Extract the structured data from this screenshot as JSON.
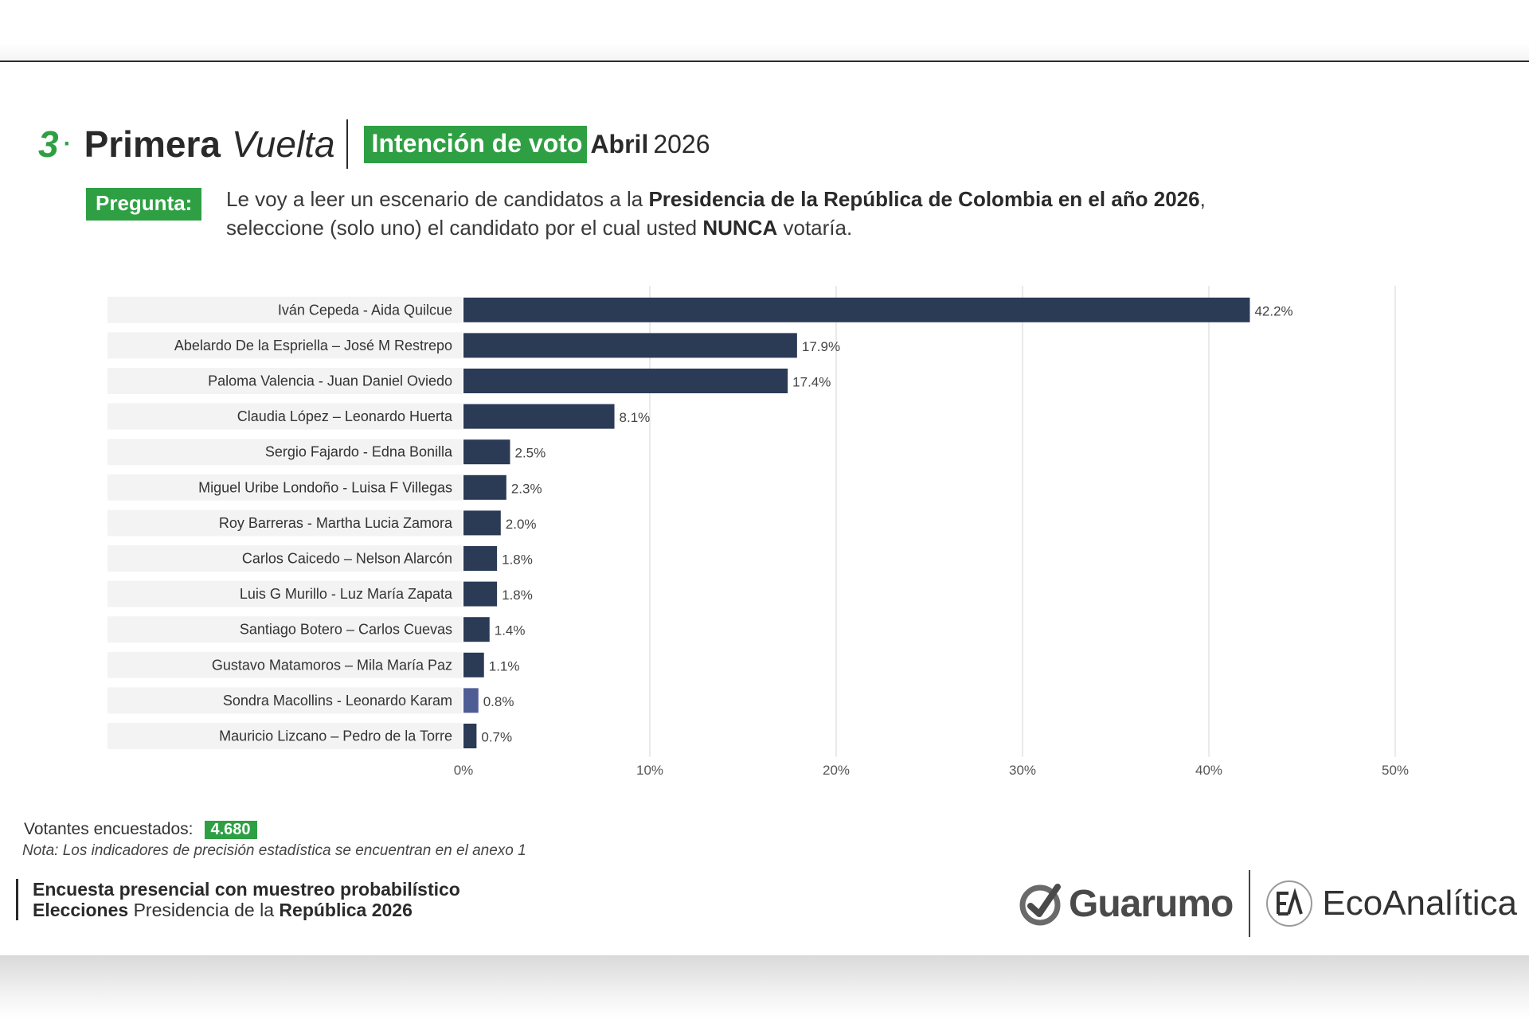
{
  "header": {
    "number": "3",
    "title_bold": "Primera",
    "title_italic": "Vuelta",
    "badge": "Intención de voto",
    "month": "Abril",
    "year": "2026"
  },
  "question": {
    "label": "Pregunta:",
    "text_1": "Le voy a leer un escenario de candidatos a la ",
    "text_bold_1": "Presidencia de la República de Colombia en el año 2026",
    "text_2": ",",
    "text_3": "seleccione (solo uno) el candidato por el cual usted ",
    "text_bold_2": "NUNCA",
    "text_4": " votaría."
  },
  "chart_data": {
    "type": "bar",
    "orientation": "horizontal",
    "categories": [
      "Iván Cepeda - Aida Quilcue",
      "Abelardo De la Espriella – José M Restrepo",
      "Paloma Valencia - Juan Daniel Oviedo",
      "Claudia López – Leonardo Huerta",
      "Sergio Fajardo - Edna Bonilla",
      "Miguel Uribe Londoño - Luisa F Villegas",
      "Roy Barreras - Martha Lucia Zamora",
      "Carlos Caicedo – Nelson Alarcón",
      "Luis G Murillo - Luz María Zapata",
      "Santiago Botero – Carlos Cuevas",
      "Gustavo Matamoros – Mila María Paz",
      "Sondra Macollins - Leonardo Karam",
      "Mauricio Lizcano – Pedro de la Torre"
    ],
    "values": [
      42.2,
      17.9,
      17.4,
      8.1,
      2.5,
      2.3,
      2.0,
      1.8,
      1.8,
      1.4,
      1.1,
      0.8,
      0.7
    ],
    "value_labels": [
      "42.2%",
      "17.9%",
      "17.4%",
      "8.1%",
      "2.5%",
      "2.3%",
      "2.0%",
      "1.8%",
      "1.8%",
      "1.4%",
      "1.1%",
      "0.8%",
      "0.7%"
    ],
    "xlim": [
      0,
      50
    ],
    "x_ticks": [
      "0%",
      "10%",
      "20%",
      "30%",
      "40%",
      "50%"
    ],
    "grid": true,
    "colors": {
      "bar": "#2b3a55",
      "bar_highlight": "#4f5d95",
      "grid": "#e3e3e3",
      "label_band": "#f3f3f3"
    },
    "highlight_index": 11
  },
  "footer": {
    "voters_label": "Votantes encuestados:",
    "voters_count": "4.680",
    "note": "Nota: Los indicadores de precisión estadística se encuentran en el anexo 1",
    "survey_line1": "Encuesta presencial con muestreo probabilístico",
    "survey_line2_bold": "Elecciones",
    "survey_line2_mid": " Presidencia de la ",
    "survey_line2_bold2": "República 2026"
  },
  "logos": {
    "guarumo": "Guarumo",
    "ecoanalitica": "EcoAnalítica",
    "guarumo_icon": "check-circle-icon",
    "eco_icon": "ea-monogram-icon"
  },
  "accent_color": "#2ea043"
}
